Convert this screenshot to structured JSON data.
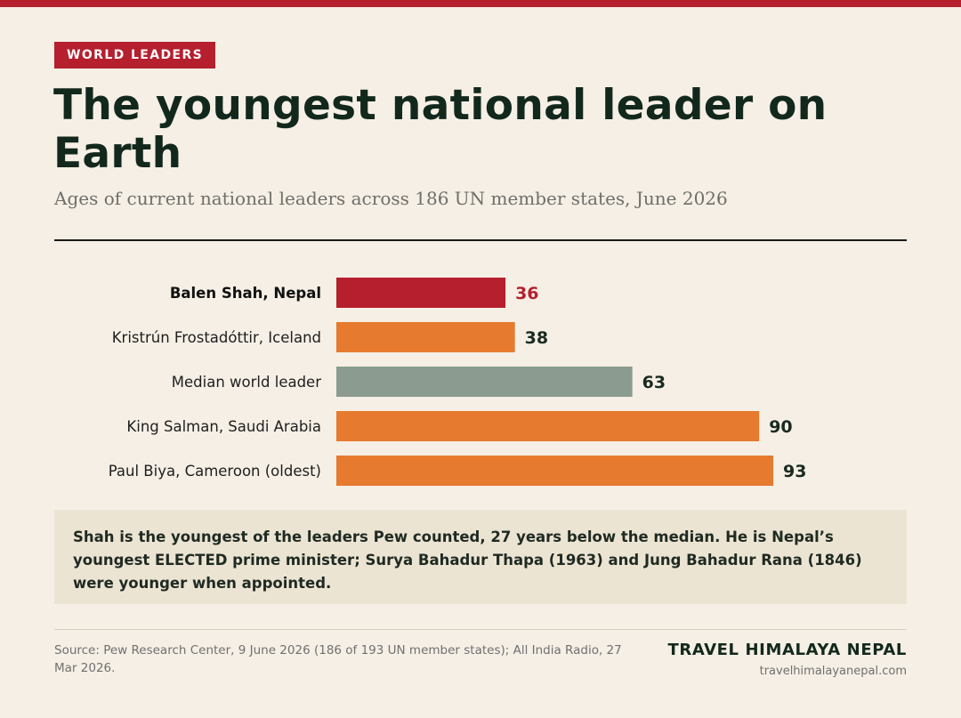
{
  "header": {
    "tag": "WORLD LEADERS",
    "title": "The youngest national leader on Earth",
    "subtitle": "Ages of current national leaders across 186 UN member states, June 2026"
  },
  "chart_data": {
    "type": "bar",
    "orientation": "horizontal",
    "categories": [
      "Balen Shah, Nepal",
      "Kristrún Frostadóttir, Iceland",
      "Median world leader",
      "King Salman, Saudi Arabia",
      "Paul Biya, Cameroon (oldest)"
    ],
    "values": [
      36,
      38,
      63,
      90,
      93
    ],
    "colors": [
      "#b51f2e",
      "#e67a2e",
      "#8c9b8f",
      "#e67a2e",
      "#e67a2e"
    ],
    "highlight_index": 0,
    "xlim": [
      0,
      100
    ],
    "grid": false,
    "data_labels": true
  },
  "note": {
    "text": "Shah is the youngest of the leaders Pew counted, 27 years below the median. He is Nepal’s youngest ELECTED prime minister; Surya Bahadur Thapa (1963) and Jung Bahadur Rana (1846) were younger when appointed."
  },
  "footer": {
    "source": "Source: Pew Research Center, 9 June 2026 (186 of 193 UN member states); All India Radio, 27 Mar 2026.",
    "brand": "TRAVEL HIMALAYA NEPAL",
    "url": "travelhimalayanepal.com"
  },
  "colors": {
    "accent": "#b51f2e",
    "bar": "#e67a2e",
    "median": "#8c9b8f",
    "background": "#f5efe5",
    "note_bg": "#ece4d3"
  }
}
